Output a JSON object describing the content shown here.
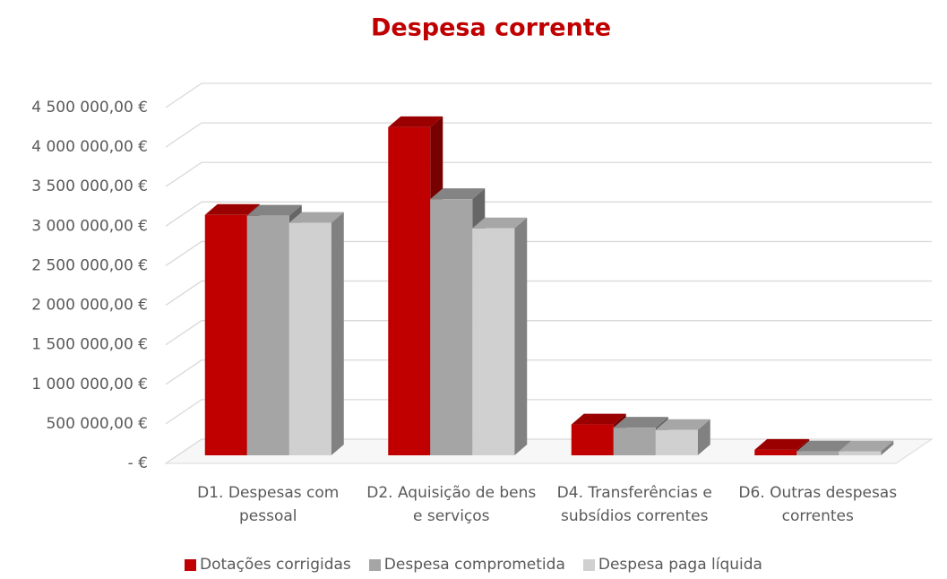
{
  "chart_data": {
    "type": "bar3d",
    "title": "Despesa corrente",
    "categories": [
      "D1. Despesas com pessoal",
      "D2. Aquisição de bens e serviços",
      "D4. Transferências e subsídios correntes",
      "D6. Outras despesas correntes"
    ],
    "series": [
      {
        "name": "Dotações corrigidas",
        "color": "#c00000",
        "values": [
          3040000,
          4150000,
          390000,
          70000
        ]
      },
      {
        "name": "Despesa comprometida",
        "color": "#a5a5a5",
        "values": [
          3030000,
          3240000,
          350000,
          50000
        ]
      },
      {
        "name": "Despesa paga líquida",
        "color": "#d0d0d0",
        "values": [
          2940000,
          2870000,
          320000,
          50000
        ]
      }
    ],
    "ylim": [
      0,
      4500000
    ],
    "yticks": [
      {
        "value": 0,
        "label": "-  €"
      },
      {
        "value": 500000,
        "label": "500 000,00 €"
      },
      {
        "value": 1000000,
        "label": "1 000 000,00 €"
      },
      {
        "value": 1500000,
        "label": "1 500 000,00 €"
      },
      {
        "value": 2000000,
        "label": "2 000 000,00 €"
      },
      {
        "value": 2500000,
        "label": "2 500 000,00 €"
      },
      {
        "value": 3000000,
        "label": "3 000 000,00 €"
      },
      {
        "value": 3500000,
        "label": "3 500 000,00 €"
      },
      {
        "value": 4000000,
        "label": "4 000 000,00 €"
      },
      {
        "value": 4500000,
        "label": "4 500 000,00 €"
      }
    ],
    "grid": true,
    "legend": "bottom"
  }
}
